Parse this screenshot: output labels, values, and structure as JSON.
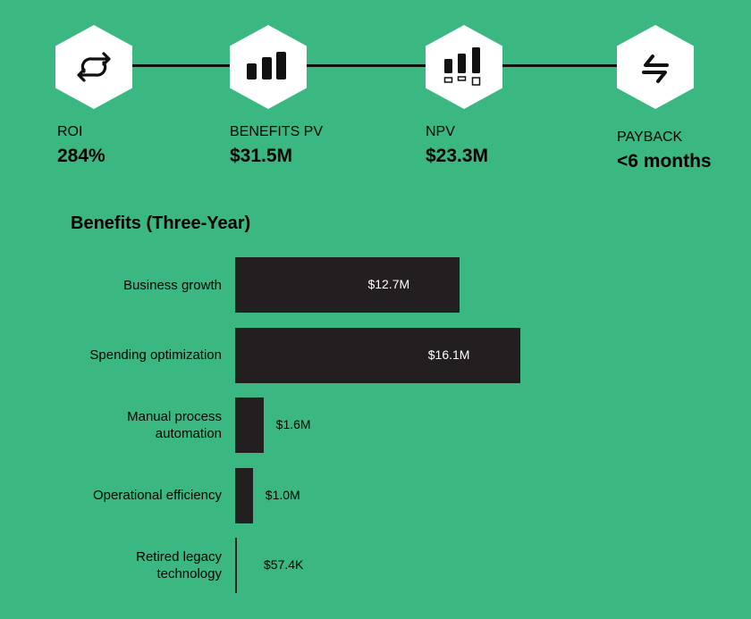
{
  "metrics": [
    {
      "label": "ROI",
      "value": "284%",
      "icon": "repeat-icon"
    },
    {
      "label": "BENEFITS PV",
      "value": "$31.5M",
      "icon": "bar-chart-icon"
    },
    {
      "label": "NPV",
      "value": "$23.3M",
      "icon": "bar-chart-boxes-icon"
    },
    {
      "label": "PAYBACK",
      "value": "<6 months",
      "icon": "payback-arrows-icon"
    }
  ],
  "colors": {
    "background": "#3bb882",
    "bar": "#231f20"
  },
  "chart_data": {
    "type": "bar",
    "orientation": "horizontal",
    "title": "Benefits (Three-Year)",
    "categories": [
      "Business growth",
      "Spending optimization",
      "Manual process automation",
      "Operational efficiency",
      "Retired legacy technology"
    ],
    "values": [
      12.7,
      16.1,
      1.6,
      1.0,
      0.0574
    ],
    "unit": "$M",
    "data_labels": [
      "$12.7M",
      "$16.1M",
      "$1.6M",
      "$1.0M",
      "$57.4K"
    ]
  }
}
